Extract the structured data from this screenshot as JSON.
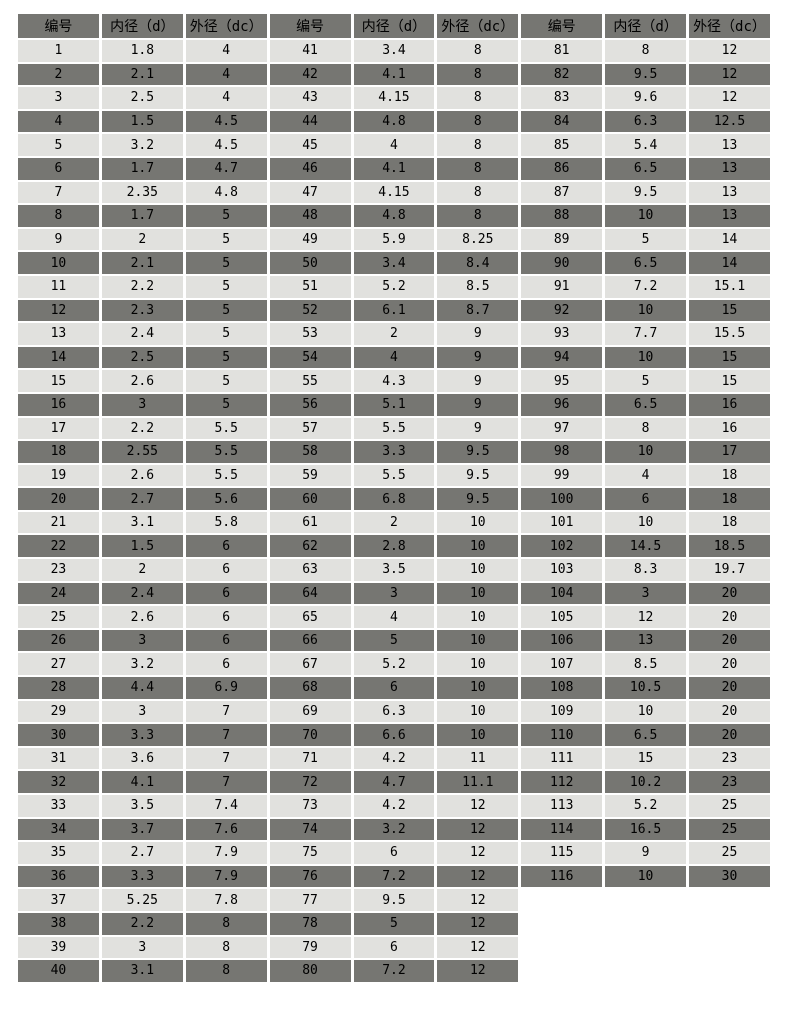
{
  "table": {
    "column_headers": [
      "编号",
      "内径（d）",
      "外径（dc）"
    ],
    "header_repeat": 3,
    "colors": {
      "header_bg": "#767672",
      "row_dark_bg": "#767672",
      "row_light_bg": "#e1e1de",
      "grid_gap": "#ffffff",
      "text": "#000000"
    },
    "groups": [
      {
        "rows": [
          [
            "1",
            "1.8",
            "4"
          ],
          [
            "2",
            "2.1",
            "4"
          ],
          [
            "3",
            "2.5",
            "4"
          ],
          [
            "4",
            "1.5",
            "4.5"
          ],
          [
            "5",
            "3.2",
            "4.5"
          ],
          [
            "6",
            "1.7",
            "4.7"
          ],
          [
            "7",
            "2.35",
            "4.8"
          ],
          [
            "8",
            "1.7",
            "5"
          ],
          [
            "9",
            "2",
            "5"
          ],
          [
            "10",
            "2.1",
            "5"
          ],
          [
            "11",
            "2.2",
            "5"
          ],
          [
            "12",
            "2.3",
            "5"
          ],
          [
            "13",
            "2.4",
            "5"
          ],
          [
            "14",
            "2.5",
            "5"
          ],
          [
            "15",
            "2.6",
            "5"
          ],
          [
            "16",
            "3",
            "5"
          ],
          [
            "17",
            "2.2",
            "5.5"
          ],
          [
            "18",
            "2.55",
            "5.5"
          ],
          [
            "19",
            "2.6",
            "5.5"
          ],
          [
            "20",
            "2.7",
            "5.6"
          ],
          [
            "21",
            "3.1",
            "5.8"
          ],
          [
            "22",
            "1.5",
            "6"
          ],
          [
            "23",
            "2",
            "6"
          ],
          [
            "24",
            "2.4",
            "6"
          ],
          [
            "25",
            "2.6",
            "6"
          ],
          [
            "26",
            "3",
            "6"
          ],
          [
            "27",
            "3.2",
            "6"
          ],
          [
            "28",
            "4.4",
            "6.9"
          ],
          [
            "29",
            "3",
            "7"
          ],
          [
            "30",
            "3.3",
            "7"
          ],
          [
            "31",
            "3.6",
            "7"
          ],
          [
            "32",
            "4.1",
            "7"
          ],
          [
            "33",
            "3.5",
            "7.4"
          ],
          [
            "34",
            "3.7",
            "7.6"
          ],
          [
            "35",
            "2.7",
            "7.9"
          ],
          [
            "36",
            "3.3",
            "7.9"
          ],
          [
            "37",
            "5.25",
            "7.8"
          ],
          [
            "38",
            "2.2",
            "8"
          ],
          [
            "39",
            "3",
            "8"
          ],
          [
            "40",
            "3.1",
            "8"
          ]
        ]
      },
      {
        "rows": [
          [
            "41",
            "3.4",
            "8"
          ],
          [
            "42",
            "4.1",
            "8"
          ],
          [
            "43",
            "4.15",
            "8"
          ],
          [
            "44",
            "4.8",
            "8"
          ],
          [
            "45",
            "4",
            "8"
          ],
          [
            "46",
            "4.1",
            "8"
          ],
          [
            "47",
            "4.15",
            "8"
          ],
          [
            "48",
            "4.8",
            "8"
          ],
          [
            "49",
            "5.9",
            "8.25"
          ],
          [
            "50",
            "3.4",
            "8.4"
          ],
          [
            "51",
            "5.2",
            "8.5"
          ],
          [
            "52",
            "6.1",
            "8.7"
          ],
          [
            "53",
            "2",
            "9"
          ],
          [
            "54",
            "4",
            "9"
          ],
          [
            "55",
            "4.3",
            "9"
          ],
          [
            "56",
            "5.1",
            "9"
          ],
          [
            "57",
            "5.5",
            "9"
          ],
          [
            "58",
            "3.3",
            "9.5"
          ],
          [
            "59",
            "5.5",
            "9.5"
          ],
          [
            "60",
            "6.8",
            "9.5"
          ],
          [
            "61",
            "2",
            "10"
          ],
          [
            "62",
            "2.8",
            "10"
          ],
          [
            "63",
            "3.5",
            "10"
          ],
          [
            "64",
            "3",
            "10"
          ],
          [
            "65",
            "4",
            "10"
          ],
          [
            "66",
            "5",
            "10"
          ],
          [
            "67",
            "5.2",
            "10"
          ],
          [
            "68",
            "6",
            "10"
          ],
          [
            "69",
            "6.3",
            "10"
          ],
          [
            "70",
            "6.6",
            "10"
          ],
          [
            "71",
            "4.2",
            "11"
          ],
          [
            "72",
            "4.7",
            "11.1"
          ],
          [
            "73",
            "4.2",
            "12"
          ],
          [
            "74",
            "3.2",
            "12"
          ],
          [
            "75",
            "6",
            "12"
          ],
          [
            "76",
            "7.2",
            "12"
          ],
          [
            "77",
            "9.5",
            "12"
          ],
          [
            "78",
            "5",
            "12"
          ],
          [
            "79",
            "6",
            "12"
          ],
          [
            "80",
            "7.2",
            "12"
          ]
        ]
      },
      {
        "rows": [
          [
            "81",
            "8",
            "12"
          ],
          [
            "82",
            "9.5",
            "12"
          ],
          [
            "83",
            "9.6",
            "12"
          ],
          [
            "84",
            "6.3",
            "12.5"
          ],
          [
            "85",
            "5.4",
            "13"
          ],
          [
            "86",
            "6.5",
            "13"
          ],
          [
            "87",
            "9.5",
            "13"
          ],
          [
            "88",
            "10",
            "13"
          ],
          [
            "89",
            "5",
            "14"
          ],
          [
            "90",
            "6.5",
            "14"
          ],
          [
            "91",
            "7.2",
            "15.1"
          ],
          [
            "92",
            "10",
            "15"
          ],
          [
            "93",
            "7.7",
            "15.5"
          ],
          [
            "94",
            "10",
            "15"
          ],
          [
            "95",
            "5",
            "15"
          ],
          [
            "96",
            "6.5",
            "16"
          ],
          [
            "97",
            "8",
            "16"
          ],
          [
            "98",
            "10",
            "17"
          ],
          [
            "99",
            "4",
            "18"
          ],
          [
            "100",
            "6",
            "18"
          ],
          [
            "101",
            "10",
            "18"
          ],
          [
            "102",
            "14.5",
            "18.5"
          ],
          [
            "103",
            "8.3",
            "19.7"
          ],
          [
            "104",
            "3",
            "20"
          ],
          [
            "105",
            "12",
            "20"
          ],
          [
            "106",
            "13",
            "20"
          ],
          [
            "107",
            "8.5",
            "20"
          ],
          [
            "108",
            "10.5",
            "20"
          ],
          [
            "109",
            "10",
            "20"
          ],
          [
            "110",
            "6.5",
            "20"
          ],
          [
            "111",
            "15",
            "23"
          ],
          [
            "112",
            "10.2",
            "23"
          ],
          [
            "113",
            "5.2",
            "25"
          ],
          [
            "114",
            "16.5",
            "25"
          ],
          [
            "115",
            "9",
            "25"
          ],
          [
            "116",
            "10",
            "30"
          ]
        ]
      }
    ]
  }
}
